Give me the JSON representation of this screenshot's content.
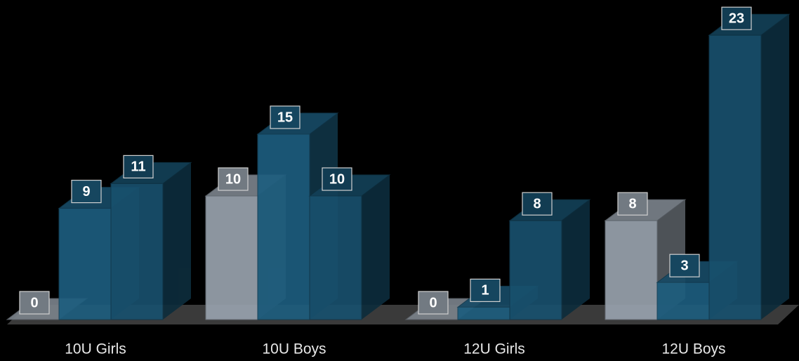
{
  "chart_data": {
    "type": "bar3d",
    "categories": [
      "10U Girls",
      "10U Boys",
      "12U Girls",
      "12U Boys"
    ],
    "series": [
      {
        "color": "#98a2ad",
        "values": [
          0,
          10,
          0,
          8
        ]
      },
      {
        "color": "#1d5d7e",
        "values": [
          9,
          15,
          1,
          3
        ]
      },
      {
        "color": "#18506d",
        "values": [
          11,
          10,
          8,
          23
        ]
      }
    ]
  }
}
